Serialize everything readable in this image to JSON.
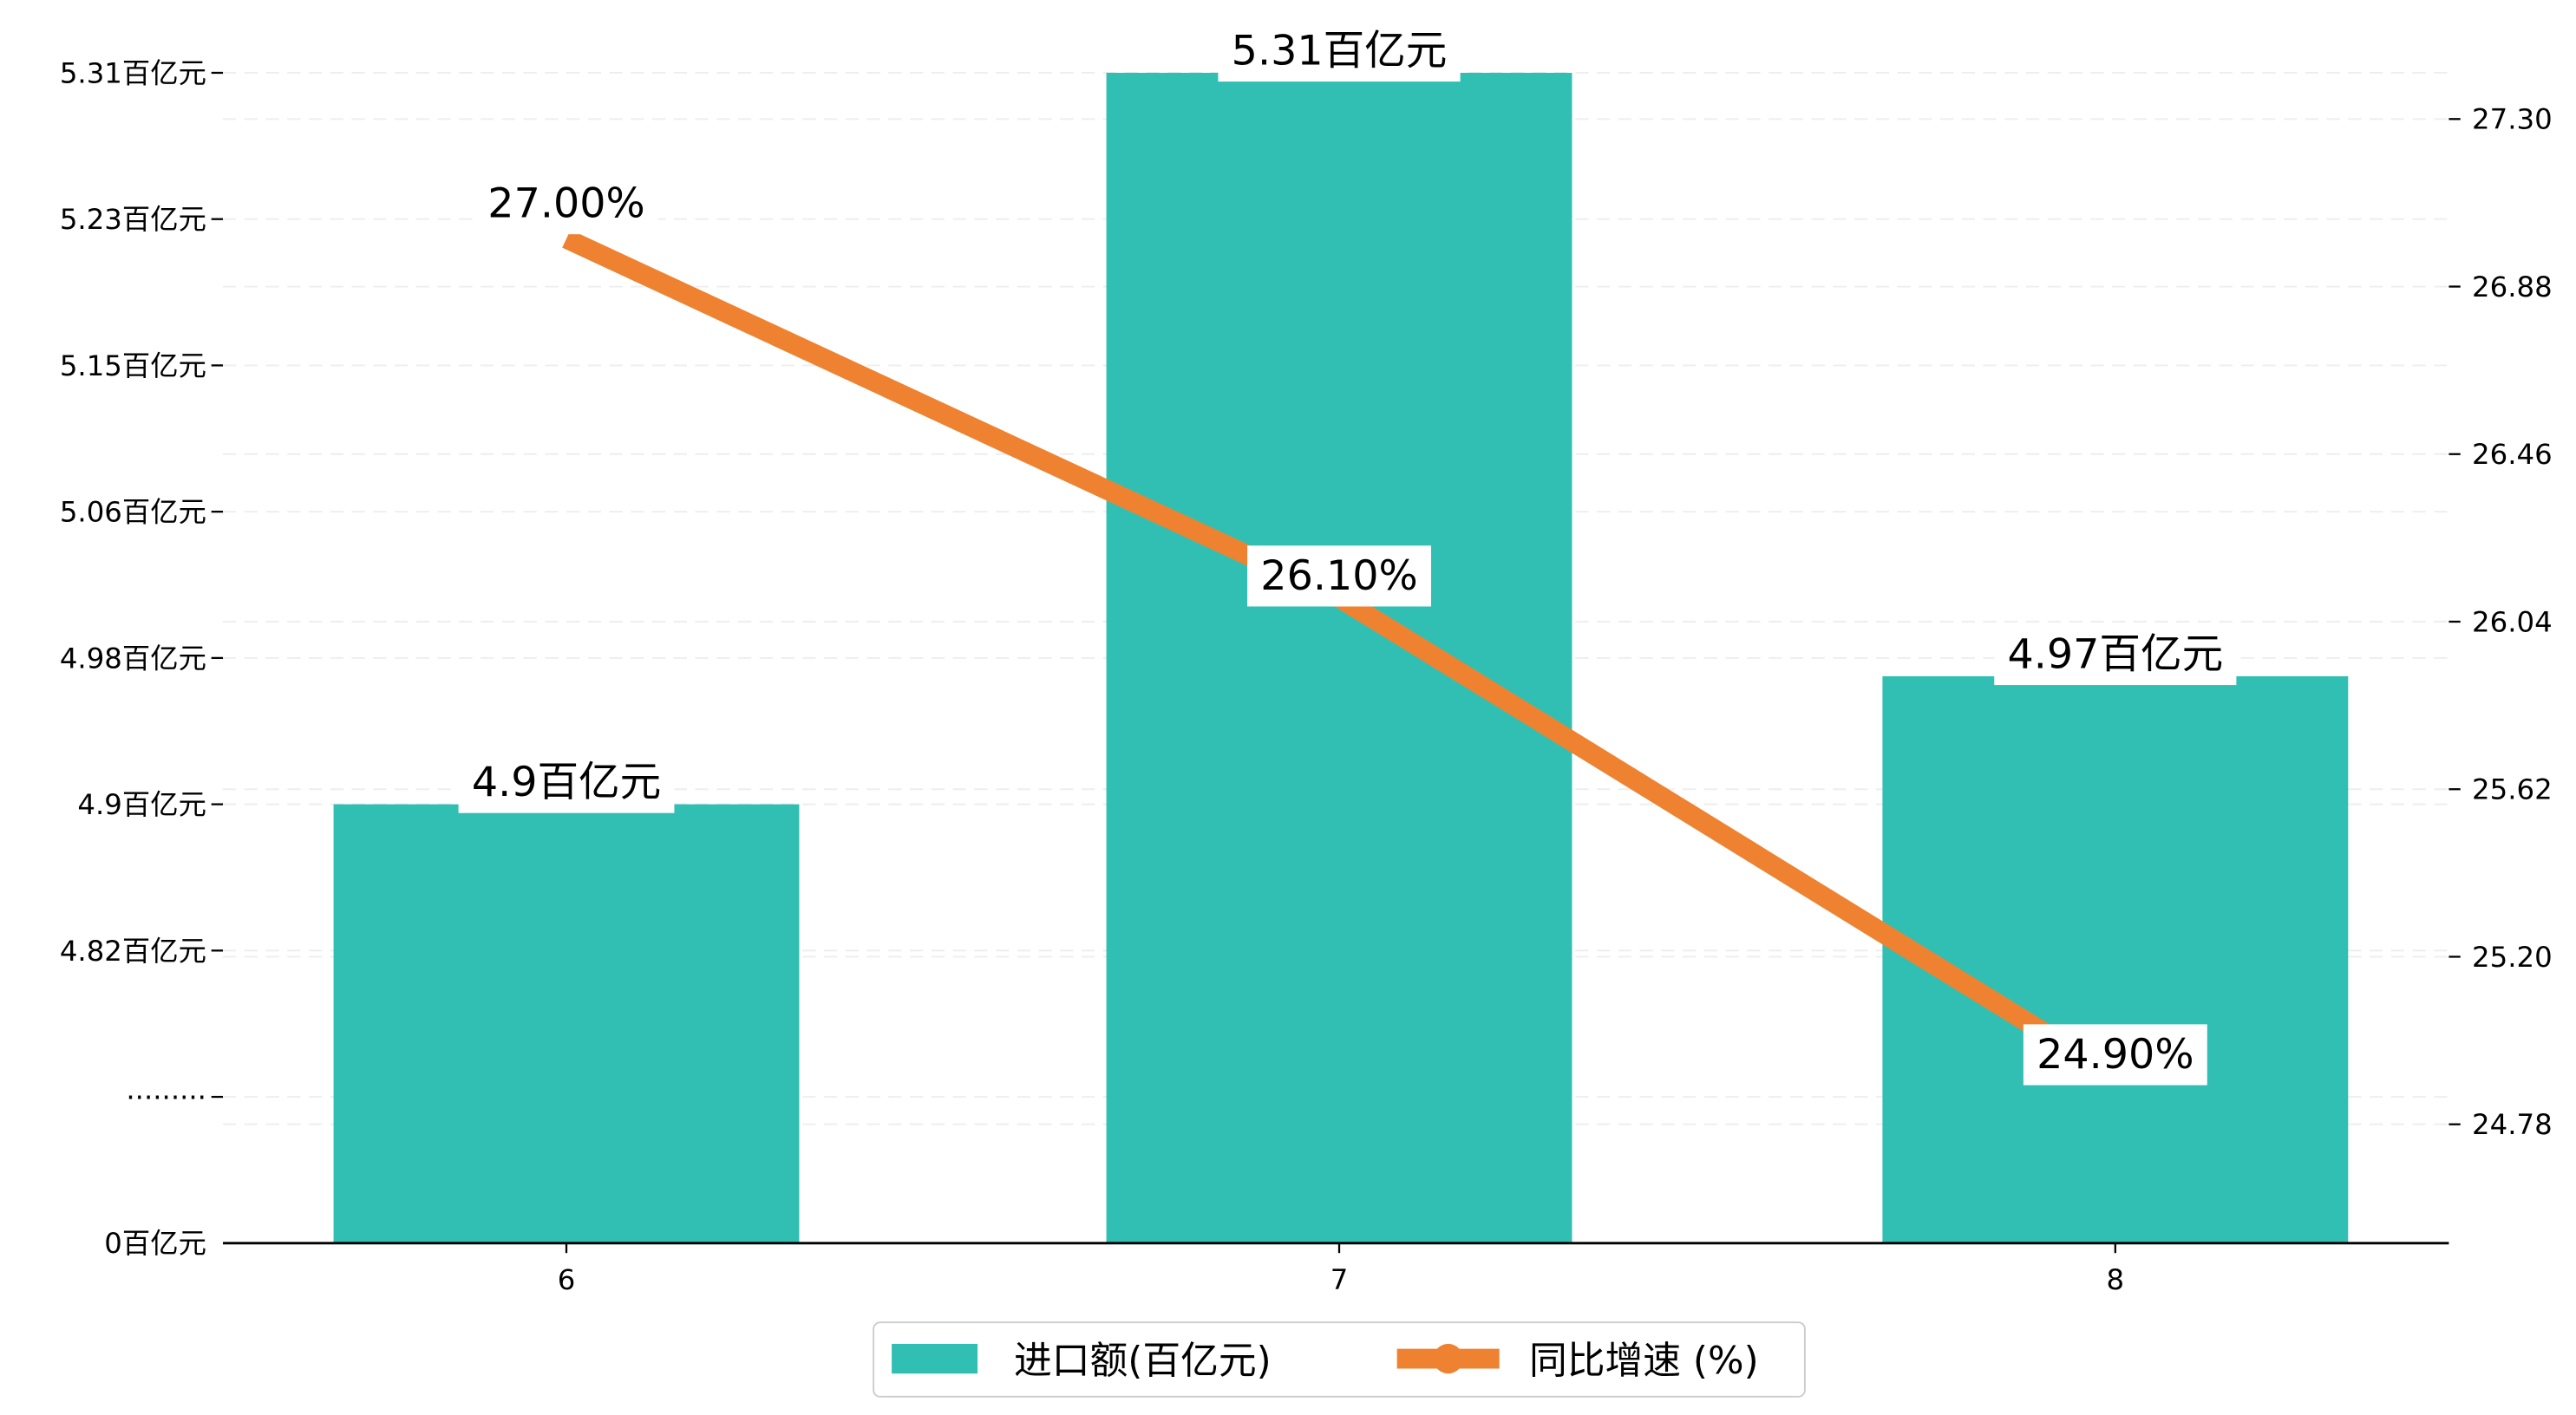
{
  "chart_data": {
    "type": "bar+line",
    "categories": [
      "6",
      "7",
      "8"
    ],
    "series": [
      {
        "name": "进口额(百亿元)",
        "type": "bar",
        "axis": "left",
        "values": [
          4.9,
          5.31,
          4.97
        ],
        "labels": [
          "4.9百亿元",
          "5.31百亿元",
          "4.97百亿元"
        ],
        "color": "#32BFB3"
      },
      {
        "name": "同比增速 (%)",
        "type": "line",
        "axis": "right",
        "values": [
          27.0,
          26.1,
          24.9
        ],
        "labels": [
          "27.00%",
          "26.10%",
          "24.90%"
        ],
        "color": "#EE8230"
      }
    ],
    "left_axis": {
      "tick_labels": [
        "0百亿元",
        "·········",
        "4.82百亿元",
        "4.9百亿元",
        "4.98百亿元",
        "5.06百亿元",
        "5.15百亿元",
        "5.23百亿元",
        "5.31百亿元"
      ],
      "tick_values": [
        0,
        null,
        4.82,
        4.9,
        4.98,
        5.06,
        5.15,
        5.23,
        5.31
      ],
      "broken": true
    },
    "right_axis": {
      "tick_labels": [
        "24.78",
        "25.20",
        "25.62",
        "26.04",
        "26.46",
        "26.88",
        "27.30"
      ],
      "tick_values": [
        24.78,
        25.2,
        25.62,
        26.04,
        26.46,
        26.88,
        27.3
      ]
    },
    "grid": true,
    "legend": "bottom-center"
  }
}
